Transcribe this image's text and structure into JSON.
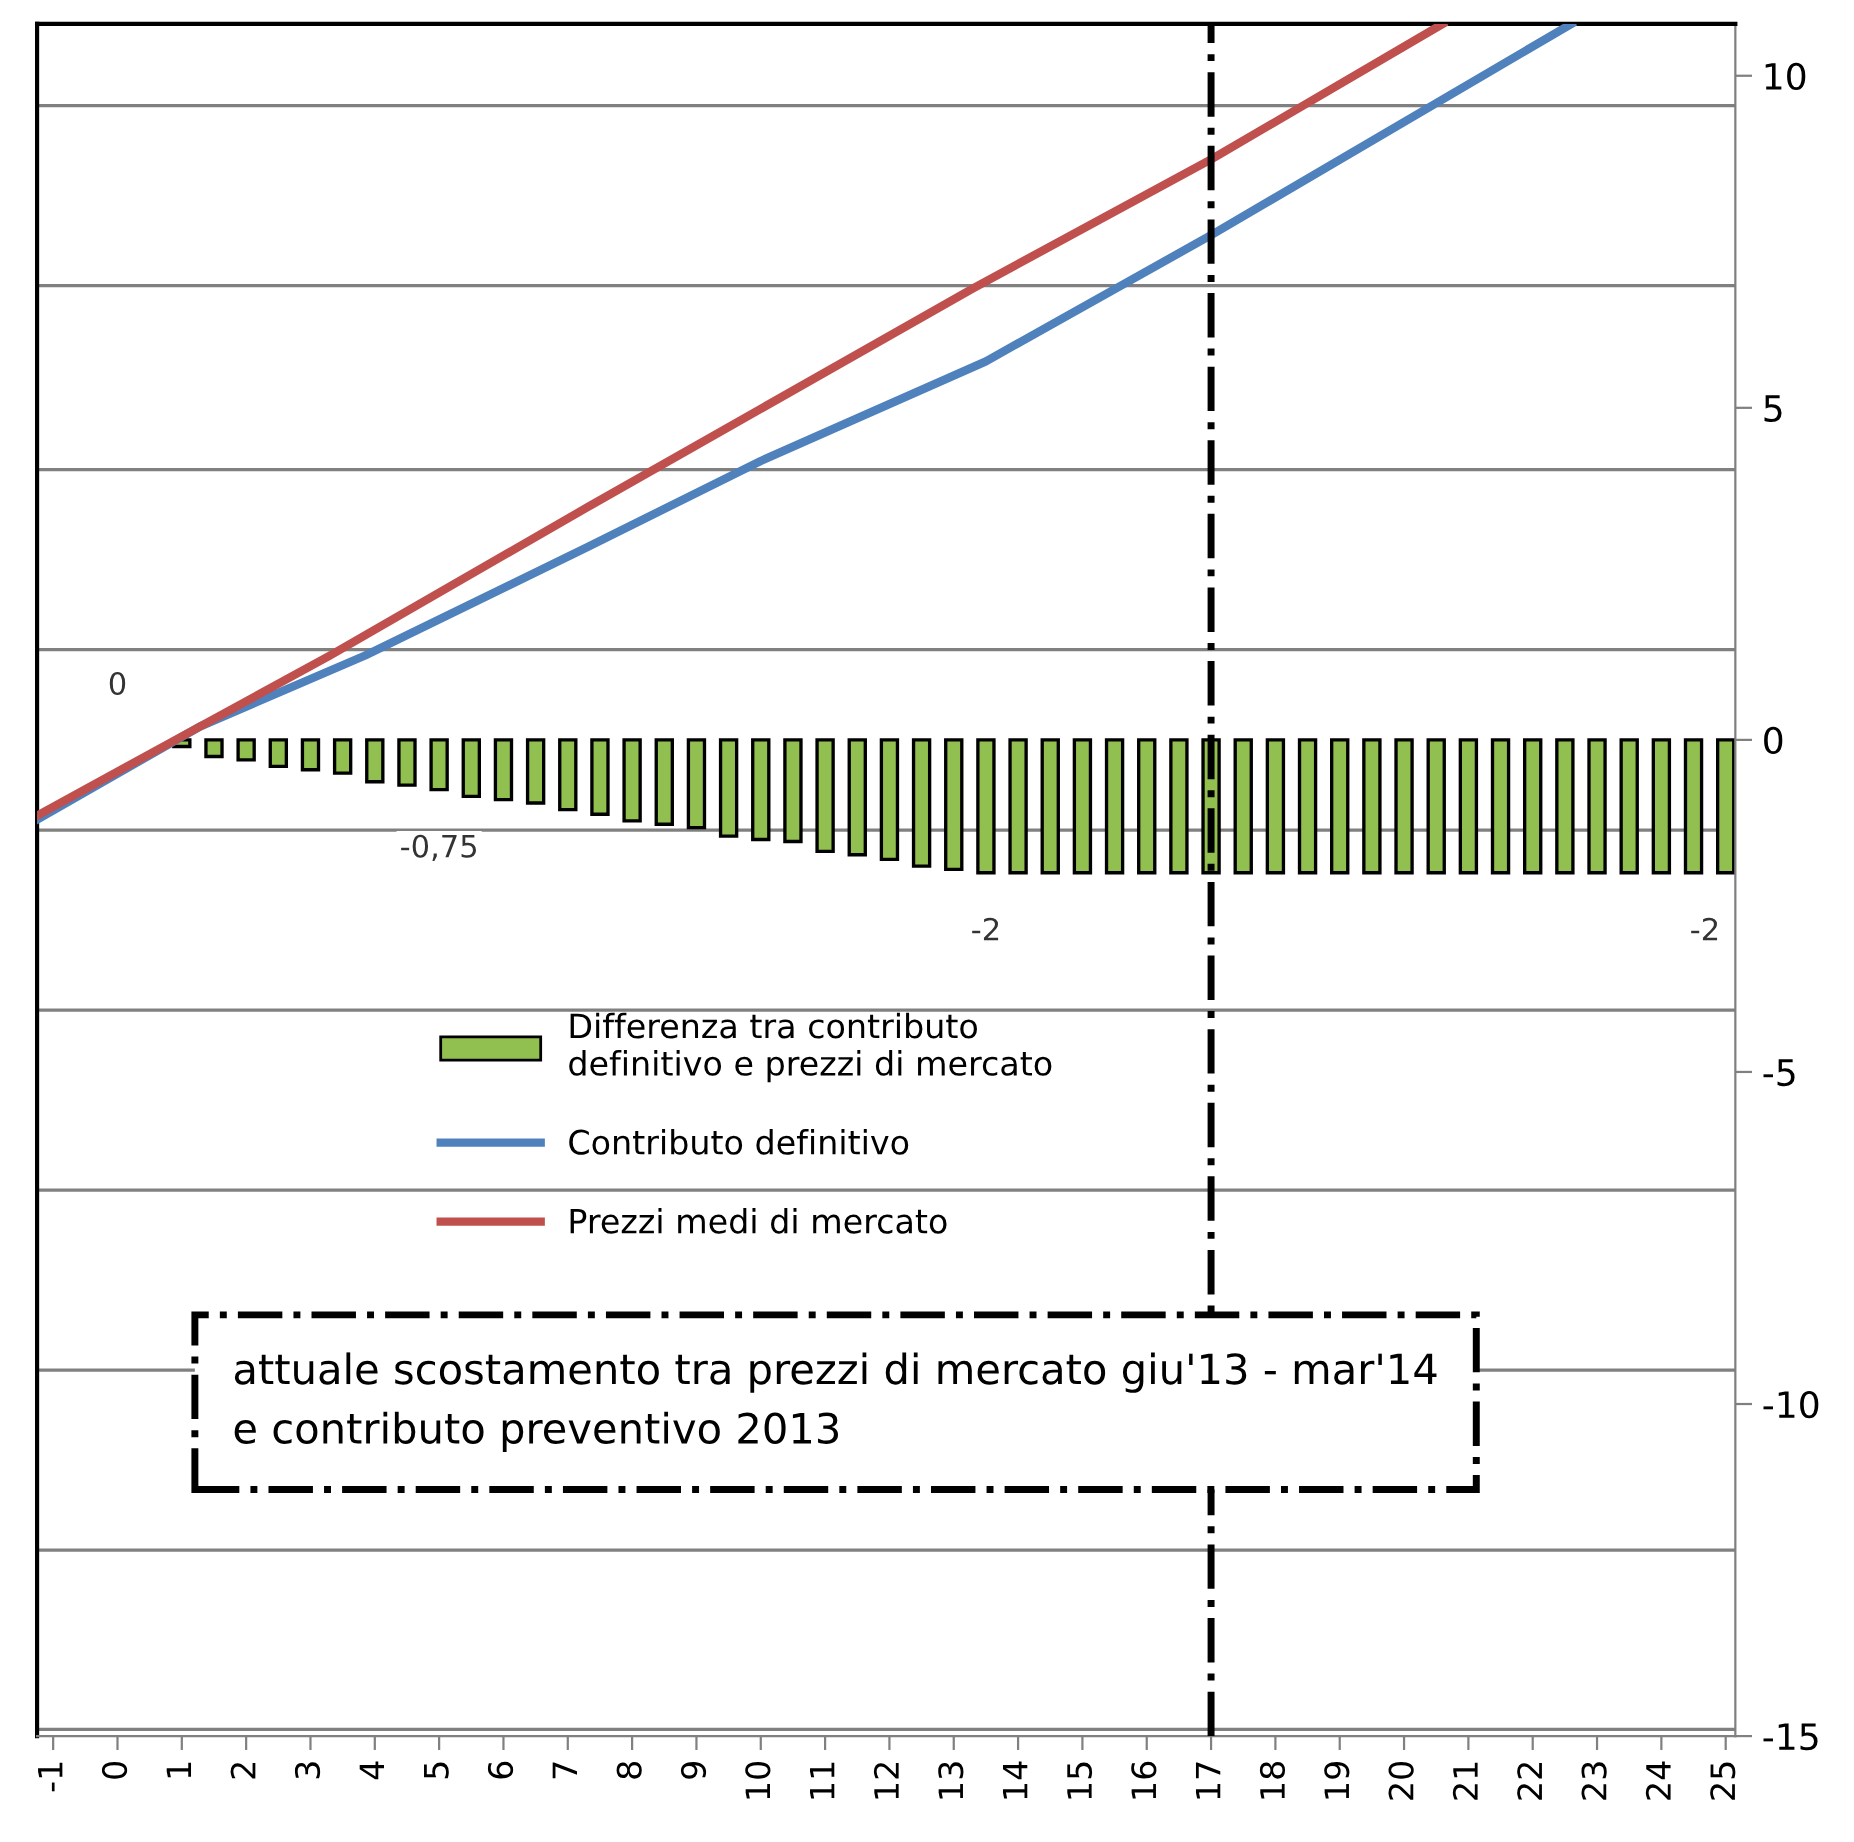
{
  "chart_data": {
    "type": "bar",
    "xlim": [
      -1.25,
      25.15
    ],
    "ylim": [
      -15,
      10.78
    ],
    "xticks": [
      -1,
      0,
      1,
      2,
      3,
      4,
      5,
      6,
      7,
      8,
      9,
      10,
      11,
      12,
      13,
      14,
      15,
      16,
      17,
      18,
      19,
      20,
      21,
      22,
      23,
      24,
      25
    ],
    "yticks": [
      -15,
      {
        "value": -14.9,
        "label": null
      },
      {
        "value": -12.2,
        "label": null
      },
      -10,
      {
        "value": -9.49,
        "label": null
      },
      {
        "value": -6.78,
        "label": null
      },
      -5,
      {
        "value": -4.07,
        "label": null
      },
      {
        "value": -1.36,
        "label": null
      },
      0,
      {
        "value": 1.36,
        "label": null
      },
      {
        "value": 4.07,
        "label": null
      },
      5,
      {
        "value": 6.84,
        "label": null
      },
      {
        "value": 9.55,
        "label": null
      },
      10
    ],
    "grid": "y",
    "legend": "center",
    "marker": "none",
    "series": [
      {
        "name": "Differenza tra contributo\ndefinitivo e prezzi di mercato",
        "color": "#92c050",
        "x": [
          -1,
          -0.5,
          0,
          0.5,
          1,
          1.5,
          2,
          2.5,
          3,
          3.5,
          4,
          4.5,
          5,
          5.5,
          6,
          6.5,
          7,
          7.5,
          8,
          8.5,
          9,
          9.5,
          10,
          10.5,
          11,
          11.5,
          12,
          12.5,
          13,
          13.5,
          14,
          14.5,
          15,
          15.5,
          16,
          16.5,
          17,
          17.5,
          18,
          18.5,
          19,
          19.5,
          20,
          20.5,
          21,
          21.5,
          22,
          22.5,
          23,
          23.5,
          24,
          24.5,
          25
        ],
        "values": [
          0,
          0,
          0,
          0,
          -0.1,
          -0.25,
          -0.3,
          -0.4,
          -0.45,
          -0.5,
          -0.63,
          -0.68,
          -0.75,
          -0.85,
          -0.9,
          -0.95,
          -1.05,
          -1.12,
          -1.22,
          -1.27,
          -1.32,
          -1.45,
          -1.5,
          -1.53,
          -1.68,
          -1.73,
          -1.8,
          -1.9,
          -1.95,
          -2,
          -2,
          -2,
          -2,
          -2,
          -2,
          -2,
          -2,
          -2,
          -2,
          -2,
          -2,
          -2,
          -2,
          -2,
          -2,
          -2,
          -2,
          -2,
          -2,
          -2,
          -2,
          -2,
          -2
        ],
        "value_labels": [
          null,
          null,
          "0",
          null,
          null,
          null,
          null,
          null,
          null,
          null,
          null,
          null,
          "-0,75",
          null,
          null,
          null,
          null,
          null,
          null,
          null,
          null,
          null,
          null,
          null,
          null,
          null,
          null,
          null,
          null,
          "-2",
          null,
          null,
          null,
          null,
          null,
          null,
          null,
          null,
          null,
          null,
          null,
          null,
          null,
          null,
          null,
          null,
          null,
          null,
          null,
          null,
          null,
          null,
          "-2"
        ]
      },
      {
        "type": "line",
        "name": "Contributo definitivo",
        "color": "#4f81bd",
        "x": [
          -1.25,
          1.28,
          3.85,
          7.3,
          10.0,
          13.5,
          17.0,
          22.6
        ],
        "values": [
          -1.2,
          0.2,
          1.27,
          2.9,
          4.2,
          5.7,
          7.6,
          10.78
        ]
      },
      {
        "type": "line",
        "name": "Prezzi medi di mercato",
        "color": "#c0504d",
        "x": [
          -1.25,
          1.28,
          3.3,
          7.3,
          13.3,
          17.0,
          20.6
        ],
        "values": [
          -1.14,
          0.2,
          1.27,
          3.5,
          6.8,
          8.74,
          10.78
        ]
      }
    ],
    "ref_lines": [
      {
        "axis": "x",
        "value": 17,
        "line_style": "dashdot",
        "color": "#000000"
      }
    ],
    "annotations": [
      "attuale scostamento tra prezzi di mercato giu'13 - mar'14\ne contributo preventivo 2013"
    ]
  }
}
